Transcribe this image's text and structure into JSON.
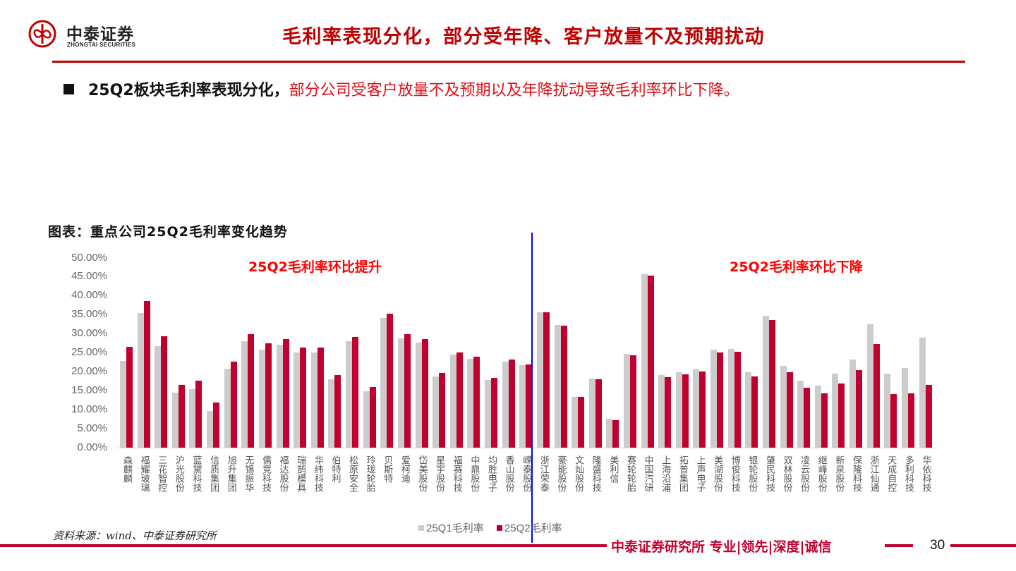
{
  "header": {
    "logo_cn": "中泰证券",
    "logo_en": "ZHONGTAI SECURITIES",
    "title": "毛利率表现分化，部分受年降、客户放量不及预期扰动",
    "accent_color": "#c00000"
  },
  "bullet": {
    "bold_text": "25Q2板块毛利率表现分化，",
    "red_text": "部分公司受客户放量不及预期以及年降扰动导致毛利率环比下降。"
  },
  "figure": {
    "title": "图表：重点公司25Q2毛利率变化趋势",
    "annotation_left": "25Q2毛利率环比提升",
    "annotation_right": "25Q2毛利率环比下降",
    "source": "资料来源：wind、中泰证券研究所"
  },
  "legend": {
    "q1_label": "25Q1毛利率",
    "q2_label": "25Q2毛利率",
    "q1_color": "#cccccc",
    "q2_color": "#c0002e"
  },
  "footer": {
    "slogan": "中泰证券研究所 专业|领先|深度|诚信",
    "page": "30"
  },
  "chart_data": {
    "type": "bar",
    "title": "重点公司25Q2毛利率变化趋势",
    "xlabel": "",
    "ylabel": "",
    "ylim": [
      0,
      50
    ],
    "yticks": [
      "0.00%",
      "5.00%",
      "10.00%",
      "15.00%",
      "20.00%",
      "25.00%",
      "30.00%",
      "35.00%",
      "40.00%",
      "45.00%",
      "50.00%"
    ],
    "grid": false,
    "legend_position": "bottom",
    "divider_after_index": 23,
    "categories": [
      "森麒麟",
      "福耀玻璃",
      "三花智控",
      "沪光股份",
      "蓝黛科技",
      "信质集团",
      "旭升集团",
      "无锡振华",
      "儒竞科技",
      "福达股份",
      "瑞鹄模具",
      "华纬科技",
      "伯特利",
      "松原安全",
      "玲珑轮胎",
      "贝斯特",
      "爱柯迪",
      "岱美股份",
      "星宇股份",
      "福赛科技",
      "中鼎股份",
      "均胜电子",
      "香山股份",
      "嵘泰股份",
      "浙江荣泰",
      "豪能股份",
      "文灿股份",
      "隆盛科技",
      "美利信",
      "赛轮轮胎",
      "中国汽研",
      "上海沿浦",
      "拓普集团",
      "上声电子",
      "美湖股份",
      "博俊科技",
      "银轮股份",
      "肇民科技",
      "双林股份",
      "凌云股份",
      "继峰股份",
      "新泉股份",
      "保隆科技",
      "浙江仙通",
      "天成自控",
      "多利科技",
      "华依科技"
    ],
    "series": [
      {
        "name": "25Q1毛利率",
        "color": "#cccccc",
        "values": [
          22.8,
          35.4,
          26.8,
          14.4,
          15.4,
          9.7,
          20.8,
          28.1,
          25.8,
          27.1,
          25.0,
          25.0,
          18.0,
          28.0,
          14.8,
          34.2,
          28.8,
          27.6,
          18.8,
          24.4,
          23.3,
          17.9,
          22.7,
          21.7,
          35.7,
          32.2,
          13.4,
          18.1,
          7.6,
          24.7,
          45.6,
          19.1,
          19.9,
          20.6,
          25.7,
          26.0,
          19.8,
          34.7,
          21.6,
          17.6,
          16.3,
          19.5,
          23.2,
          32.5,
          19.4,
          20.9,
          29.0
        ]
      },
      {
        "name": "25Q2毛利率",
        "color": "#c0002e",
        "values": [
          26.6,
          38.5,
          29.3,
          16.6,
          17.6,
          11.8,
          22.7,
          29.9,
          27.5,
          28.5,
          26.3,
          26.3,
          19.2,
          29.1,
          16.0,
          35.3,
          29.8,
          28.6,
          19.7,
          25.0,
          23.9,
          18.4,
          23.1,
          21.9,
          35.7,
          32.1,
          13.4,
          18.0,
          7.2,
          24.3,
          45.2,
          18.5,
          19.3,
          20.0,
          25.0,
          25.2,
          18.7,
          33.6,
          19.8,
          15.7,
          14.3,
          16.8,
          20.5,
          27.3,
          14.1,
          14.3,
          16.5
        ]
      }
    ]
  }
}
